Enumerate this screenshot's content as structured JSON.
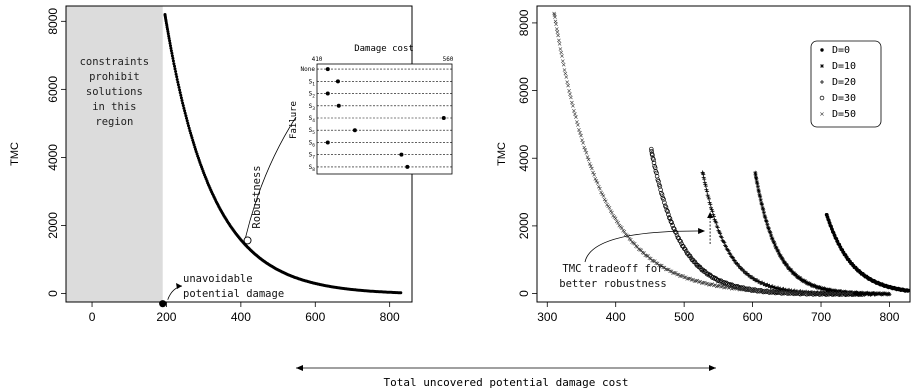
{
  "shared": {
    "xlabel": "Total uncovered potential damage cost"
  },
  "chart_data": [
    {
      "type": "scatter",
      "panel": "left",
      "ylabel": "TMC",
      "xlim": [
        -70,
        860
      ],
      "ylim": [
        -250,
        8450
      ],
      "x_ticks": [
        0,
        200,
        400,
        600,
        800
      ],
      "y_ticks": [
        0,
        2000,
        4000,
        6000,
        8000
      ],
      "x_tick_labels": [
        "0",
        "200",
        "400",
        "600",
        "800"
      ],
      "y_tick_labels": [
        "0",
        "2000",
        "4000",
        "6000",
        "8000"
      ],
      "shaded_region": {
        "x": [
          -70,
          190
        ],
        "label_lines": [
          "constraints",
          "prohibit",
          "solutions",
          "in this",
          "region"
        ]
      },
      "curve": {
        "x_start": 196,
        "x_end": 830,
        "y_at_start": 8200,
        "decay": 125,
        "offset": -30
      },
      "highlight_point": {
        "x": 190,
        "y": -300
      },
      "robustness_point": {
        "x": 418,
        "y": 1560
      },
      "annotations": [
        {
          "id": "unavoidable",
          "lines": [
            "unavoidable",
            "potential damage"
          ]
        },
        {
          "id": "robustness",
          "text": "Robustness"
        }
      ],
      "inset": {
        "title": "Damage cost",
        "ylabel": "Failure",
        "xlim": [
          410,
          560
        ],
        "x_tick_labels": [
          "410",
          "560"
        ],
        "rows": [
          {
            "label": "None",
            "sub": "",
            "x": 418
          },
          {
            "label": "S",
            "sub": "1",
            "x": 430
          },
          {
            "label": "S",
            "sub": "2",
            "x": 418
          },
          {
            "label": "S",
            "sub": "3",
            "x": 431
          },
          {
            "label": "S",
            "sub": "4",
            "x": 555
          },
          {
            "label": "S",
            "sub": "5",
            "x": 450
          },
          {
            "label": "S",
            "sub": "6",
            "x": 418
          },
          {
            "label": "S",
            "sub": "7",
            "x": 505
          },
          {
            "label": "S",
            "sub": "8",
            "x": 512
          }
        ]
      }
    },
    {
      "type": "scatter",
      "panel": "right",
      "ylabel": "TMC",
      "xlim": [
        285,
        830
      ],
      "ylim": [
        -250,
        8500
      ],
      "x_ticks": [
        300,
        400,
        500,
        600,
        700,
        800
      ],
      "y_ticks": [
        0,
        2000,
        4000,
        6000,
        8000
      ],
      "x_tick_labels": [
        "300",
        "400",
        "500",
        "600",
        "700",
        "800"
      ],
      "y_tick_labels": [
        "0",
        "2000",
        "4000",
        "6000",
        "8000"
      ],
      "legend": {
        "position": "top-right",
        "entries": [
          {
            "symbol": "•",
            "label": "D=0"
          },
          {
            "symbol": "*",
            "label": "D=10"
          },
          {
            "symbol": "+",
            "label": "D=20"
          },
          {
            "symbol": "o",
            "label": "D=30"
          },
          {
            "symbol": "x",
            "label": "D=50"
          }
        ]
      },
      "series": [
        {
          "label": "D=0",
          "symbol": "•",
          "x_start": 708,
          "x_end": 828,
          "y_start": 2350,
          "decay": 38,
          "offset": -20
        },
        {
          "label": "D=10",
          "symbol": "*",
          "x_start": 604,
          "x_end": 800,
          "y_start": 3550,
          "decay": 32,
          "offset": -20
        },
        {
          "label": "D=20",
          "symbol": "+",
          "x_start": 527,
          "x_end": 780,
          "y_start": 3600,
          "decay": 36,
          "offset": -20
        },
        {
          "label": "D=30",
          "symbol": "o",
          "x_start": 452,
          "x_end": 760,
          "y_start": 4250,
          "decay": 42,
          "offset": -20
        },
        {
          "label": "D=50",
          "symbol": "x",
          "x_start": 310,
          "x_end": 745,
          "y_start": 8300,
          "decay": 68,
          "offset": -20
        }
      ],
      "annotation": {
        "lines": [
          "TMC tradeoff for",
          "better robustness"
        ],
        "arrow_x": 535
      }
    }
  ]
}
